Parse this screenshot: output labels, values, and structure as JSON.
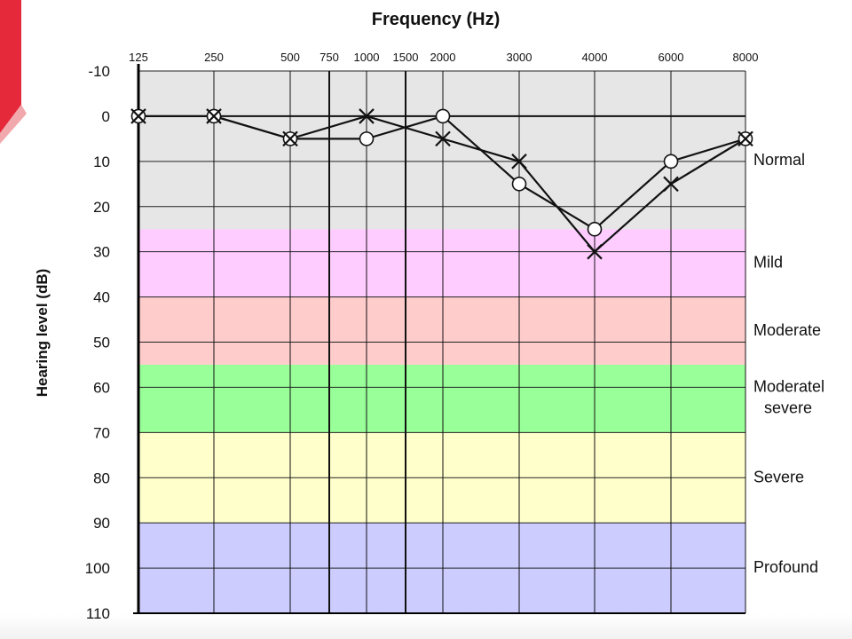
{
  "chart_data": {
    "type": "line",
    "title": "Frequency (Hz)",
    "ylabel": "Hearing level (dB)",
    "x_ticks": [
      "125",
      "250",
      "500",
      "750",
      "1000",
      "1500",
      "2000",
      "3000",
      "4000",
      "6000",
      "8000"
    ],
    "y_ticks": [
      "-10",
      "0",
      "10",
      "20",
      "30",
      "40",
      "50",
      "60",
      "70",
      "80",
      "90",
      "100",
      "110"
    ],
    "ylim": [
      -10,
      110
    ],
    "y_inverted": true,
    "grid": true,
    "bands": [
      {
        "label": "Normal",
        "from": -10,
        "to": 25,
        "color": "#e6e6e6"
      },
      {
        "label": "Mild",
        "from": 25,
        "to": 40,
        "color": "#ffccff"
      },
      {
        "label": "Moderate",
        "from": 40,
        "to": 55,
        "color": "#ffcccc"
      },
      {
        "label": "Moderatel\nsevere",
        "from": 55,
        "to": 70,
        "color": "#99ff99"
      },
      {
        "label": "Severe",
        "from": 70,
        "to": 90,
        "color": "#ffffcc"
      },
      {
        "label": "Profound",
        "from": 90,
        "to": 110,
        "color": "#ccccff"
      }
    ],
    "series": [
      {
        "marker": "circle",
        "x": [
          "125",
          "250",
          "500",
          "1000",
          "2000",
          "3000",
          "4000",
          "6000",
          "8000"
        ],
        "values": [
          0,
          0,
          5,
          5,
          0,
          15,
          25,
          10,
          5
        ]
      },
      {
        "marker": "cross",
        "x": [
          "125",
          "250",
          "500",
          "1000",
          "2000",
          "3000",
          "4000",
          "6000",
          "8000"
        ],
        "values": [
          0,
          0,
          5,
          0,
          5,
          10,
          30,
          15,
          5
        ]
      }
    ]
  }
}
